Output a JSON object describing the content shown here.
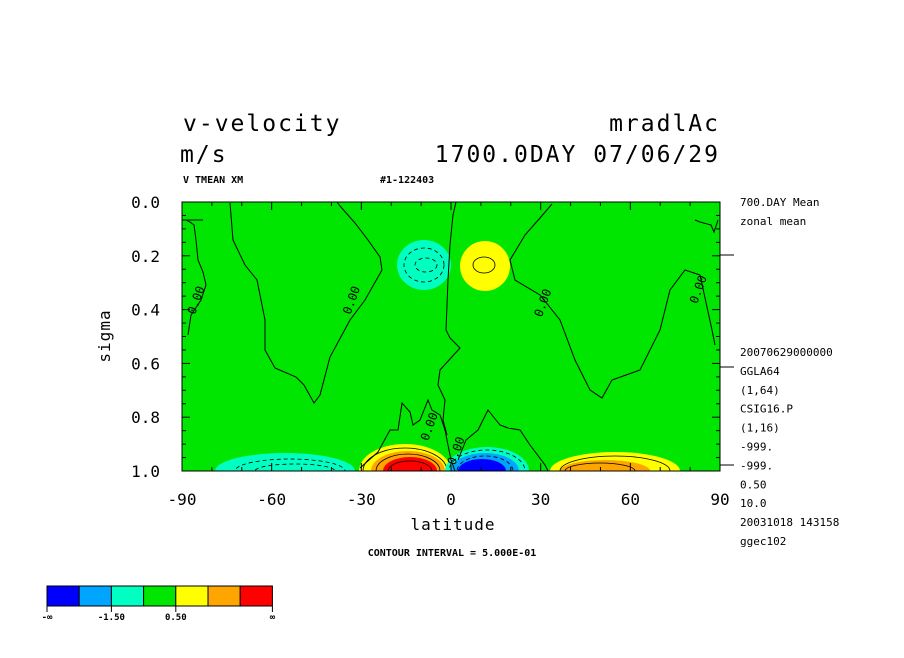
{
  "header": {
    "variable": "v-velocity",
    "units": "m/s",
    "run": "mradlAc",
    "time": "1700.0DAY 07/06/29",
    "subtitle_left": "V TMEAN XM",
    "subtitle_mid": "#1-122403"
  },
  "side_info": {
    "top": [
      "700.DAY Mean",
      "zonal mean"
    ],
    "bottom": [
      "20070629000000",
      "GGLA64",
      "(1,64)",
      "CSIG16.P",
      "(1,16)",
      "-999.",
      "-999.",
      "0.50",
      "10.0",
      "20031018 143158",
      "ggec102"
    ]
  },
  "footer": {
    "contour_interval": "CONTOUR INTERVAL = 5.000E-01"
  },
  "colorbar": {
    "colors": [
      "#0000ff",
      "#00a5ff",
      "#00ffc0",
      "#00e600",
      "#ffff00",
      "#ffa500",
      "#ff0000"
    ],
    "labels": [
      "-∞",
      "-1.50",
      "0.50",
      "∞"
    ]
  },
  "chart_data": {
    "type": "heatmap",
    "title": "v-velocity",
    "xlabel": "latitude",
    "ylabel": "sigma",
    "xlim": [
      -90,
      90
    ],
    "ylim": [
      1.0,
      0.0
    ],
    "x_ticks": [
      "-90",
      "-60",
      "-30",
      "0",
      "30",
      "60",
      "90"
    ],
    "y_ticks": [
      "0.0",
      "0.2",
      "0.4",
      "0.6",
      "0.8",
      "1.0"
    ],
    "background_color": "#00e600",
    "contour_labels": [
      {
        "text": "0.00",
        "lat": -84,
        "sigma": 0.37
      },
      {
        "text": "0.00",
        "lat": -32,
        "sigma": 0.37
      },
      {
        "text": "0.00",
        "lat": 32,
        "sigma": 0.38
      },
      {
        "text": "0.00",
        "lat": 84,
        "sigma": 0.33
      },
      {
        "text": "0.00",
        "lat": -6,
        "sigma": 0.84
      },
      {
        "text": "0.00",
        "lat": 3,
        "sigma": 0.93
      }
    ],
    "features": [
      {
        "kind": "negative",
        "lat": -10,
        "sigma": 0.23,
        "min_approx": -1.5
      },
      {
        "kind": "positive",
        "lat": 11,
        "sigma": 0.25,
        "max_approx": 1.0
      },
      {
        "kind": "positive",
        "lat": -15,
        "sigma": 0.97,
        "max_approx": 4.0
      },
      {
        "kind": "negative",
        "lat": 10,
        "sigma": 0.97,
        "min_approx": -4.0
      },
      {
        "kind": "negative",
        "lat": -48,
        "sigma": 0.98,
        "min_approx": -1.5
      },
      {
        "kind": "positive",
        "lat": 50,
        "sigma": 0.98,
        "max_approx": 2.0
      }
    ]
  }
}
